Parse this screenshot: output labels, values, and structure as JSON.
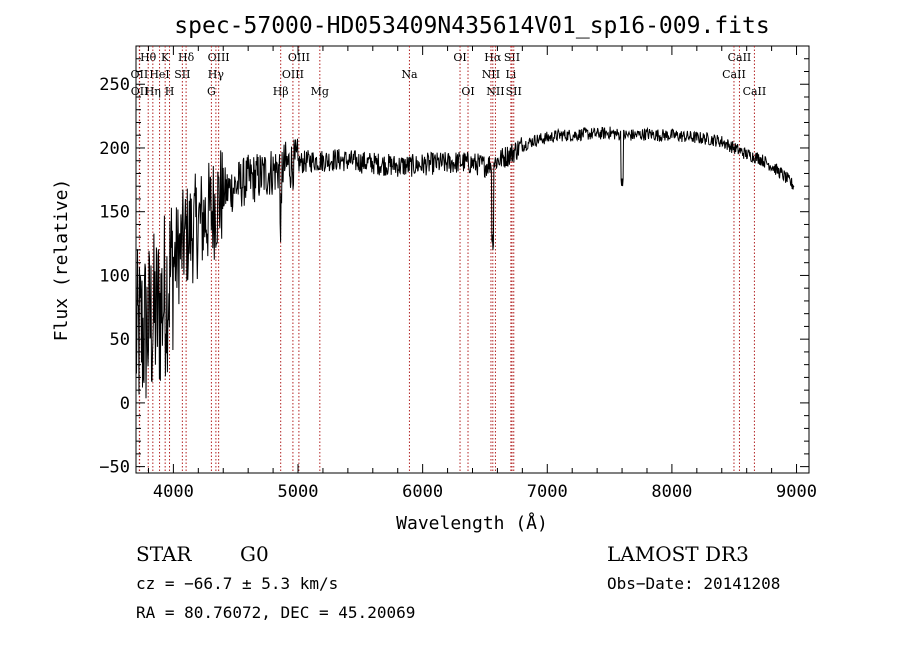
{
  "chart_data": {
    "type": "line",
    "title": "spec-57000-HD053409N435614V01_sp16-009.fits",
    "xlabel": "Wavelength (Å)",
    "ylabel": "Flux (relative)",
    "xlim": [
      3700,
      9100
    ],
    "ylim": [
      -55,
      280
    ],
    "x_ticks": [
      4000,
      5000,
      6000,
      7000,
      8000,
      9000
    ],
    "y_ticks": [
      -50,
      0,
      50,
      100,
      150,
      200,
      250
    ],
    "series": [
      {
        "name": "flux",
        "x": [
          3700,
          3800,
          3900,
          4000,
          4100,
          4200,
          4300,
          4400,
          4500,
          4600,
          4700,
          4800,
          4900,
          5000,
          5100,
          5200,
          5300,
          5400,
          5500,
          5600,
          5700,
          5800,
          5900,
          6000,
          6100,
          6200,
          6300,
          6400,
          6500,
          6600,
          6700,
          6800,
          6900,
          7000,
          7100,
          7200,
          7300,
          7400,
          7500,
          7600,
          7700,
          7800,
          7900,
          8000,
          8100,
          8200,
          8300,
          8400,
          8500,
          8600,
          8700,
          8800,
          8900,
          8980
        ],
        "y": [
          50,
          60,
          75,
          110,
          130,
          140,
          150,
          165,
          170,
          175,
          178,
          182,
          186,
          188,
          190,
          190,
          191,
          190,
          189,
          188,
          187,
          186,
          186,
          187,
          188,
          188,
          189,
          188,
          186,
          190,
          195,
          202,
          206,
          208,
          210,
          210,
          211,
          211,
          212,
          210,
          210,
          211,
          210,
          210,
          209,
          208,
          207,
          205,
          200,
          195,
          192,
          186,
          178,
          170
        ]
      }
    ],
    "line_markers": [
      {
        "label": "Hθ",
        "x": 3798,
        "row": 0
      },
      {
        "label": "OII",
        "x": 3727,
        "row": 1
      },
      {
        "label": "OII",
        "x": 3729,
        "row": 2
      },
      {
        "label": "K",
        "x": 3934,
        "row": 0
      },
      {
        "label": "HeI",
        "x": 3889,
        "row": 1
      },
      {
        "label": "Hη",
        "x": 3835,
        "row": 2
      },
      {
        "label": "Hδ",
        "x": 4102,
        "row": 0
      },
      {
        "label": "SII",
        "x": 4072,
        "row": 1
      },
      {
        "label": "H",
        "x": 3969,
        "row": 2
      },
      {
        "label": "OIII",
        "x": 4363,
        "row": 0
      },
      {
        "label": "Hγ",
        "x": 4341,
        "row": 1
      },
      {
        "label": "G",
        "x": 4305,
        "row": 2
      },
      {
        "label": "OIII",
        "x": 5007,
        "row": 0
      },
      {
        "label": "OIII",
        "x": 4959,
        "row": 1
      },
      {
        "label": "Hβ",
        "x": 4861,
        "row": 2
      },
      {
        "label": "Mg",
        "x": 5175,
        "row": 2
      },
      {
        "label": "Na",
        "x": 5894,
        "row": 1
      },
      {
        "label": "OI",
        "x": 6300,
        "row": 0
      },
      {
        "label": "OI",
        "x": 6364,
        "row": 2
      },
      {
        "label": "Hα",
        "x": 6563,
        "row": 0
      },
      {
        "label": "NII",
        "x": 6548,
        "row": 1
      },
      {
        "label": "NII",
        "x": 6584,
        "row": 2
      },
      {
        "label": "SII",
        "x": 6717,
        "row": 0
      },
      {
        "label": "Li",
        "x": 6708,
        "row": 1
      },
      {
        "label": "SII",
        "x": 6731,
        "row": 2
      },
      {
        "label": "CaII",
        "x": 8542,
        "row": 0
      },
      {
        "label": "CaII",
        "x": 8498,
        "row": 1
      },
      {
        "label": "CaII",
        "x": 8662,
        "row": 2
      }
    ]
  },
  "info": {
    "class": "STAR",
    "subclass": "G0",
    "survey": "LAMOST DR3",
    "cz": "cz = −66.7 ± 5.3 km/s",
    "obs_date": "Obs−Date: 20141208",
    "coords": "RA =  80.76072, DEC =  45.20069"
  }
}
